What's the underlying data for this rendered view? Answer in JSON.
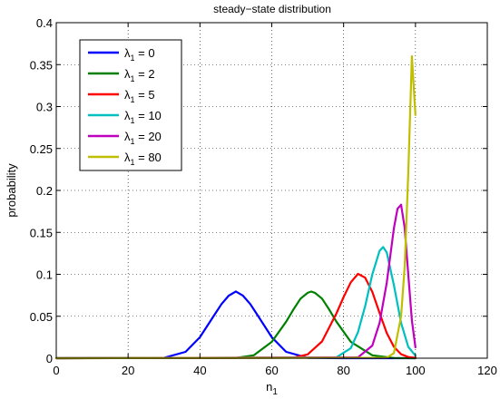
{
  "chart_data": {
    "type": "line",
    "title": "steady−state distribution",
    "xlabel": "n",
    "xlabel_sub": "1",
    "ylabel": "probability",
    "xlim": [
      0,
      120
    ],
    "ylim": [
      0,
      0.4
    ],
    "xticks": [
      0,
      20,
      40,
      60,
      80,
      100,
      120
    ],
    "xtick_labels": [
      "0",
      "20",
      "40",
      "60",
      "80",
      "100",
      "120"
    ],
    "yticks": [
      0,
      0.05,
      0.1,
      0.15,
      0.2,
      0.25,
      0.3,
      0.35,
      0.4
    ],
    "ytick_labels": [
      "0",
      "0.05",
      "0.1",
      "0.15",
      "0.2",
      "0.25",
      "0.3",
      "0.35",
      "0.4"
    ],
    "grid": true,
    "legend_position": "top-left",
    "series": [
      {
        "name": "λ1 = 0",
        "label_prefix": "λ",
        "label_sub": "1",
        "label_suffix": " = 0",
        "color": "#0000ff",
        "x": [
          0,
          30,
          36,
          40,
          44,
          46,
          48,
          50,
          52,
          54,
          56,
          60,
          64,
          70,
          80,
          100
        ],
        "y": [
          0,
          0.0004,
          0.0076,
          0.025,
          0.0515,
          0.0645,
          0.0745,
          0.0796,
          0.0745,
          0.0645,
          0.0515,
          0.025,
          0.0076,
          0.0004,
          0,
          0
        ]
      },
      {
        "name": "λ1 = 2",
        "label_prefix": "λ",
        "label_sub": "1",
        "label_suffix": " = 2",
        "color": "#008000",
        "x": [
          0,
          50,
          55,
          60,
          64,
          66,
          68,
          70,
          71,
          72,
          74,
          76,
          78,
          82,
          88,
          94,
          100
        ],
        "y": [
          0,
          0.0003,
          0.0035,
          0.0195,
          0.0435,
          0.058,
          0.071,
          0.078,
          0.0795,
          0.078,
          0.071,
          0.058,
          0.0435,
          0.0195,
          0.0035,
          0.0002,
          0
        ]
      },
      {
        "name": "λ1 = 5",
        "label_prefix": "λ",
        "label_sub": "1",
        "label_suffix": " = 5",
        "color": "#ff0000",
        "x": [
          0,
          66,
          70,
          74,
          78,
          80,
          82,
          84,
          86,
          88,
          90,
          92,
          94,
          96,
          98,
          100
        ],
        "y": [
          0,
          0.0006,
          0.0045,
          0.02,
          0.0535,
          0.073,
          0.0905,
          0.1005,
          0.096,
          0.079,
          0.054,
          0.03,
          0.0135,
          0.0048,
          0.0014,
          0.0004
        ]
      },
      {
        "name": "λ1 = 10",
        "label_prefix": "λ",
        "label_sub": "1",
        "label_suffix": " = 10",
        "color": "#00bfbf",
        "x": [
          0,
          78,
          82,
          84,
          86,
          88,
          90,
          91,
          92,
          94,
          96,
          98,
          100
        ],
        "y": [
          0,
          0.001,
          0.012,
          0.031,
          0.062,
          0.1,
          0.128,
          0.1325,
          0.126,
          0.087,
          0.042,
          0.0135,
          0.003
        ]
      },
      {
        "name": "λ1 = 20",
        "label_prefix": "λ",
        "label_sub": "1",
        "label_suffix": " = 20",
        "color": "#bf00bf",
        "x": [
          0,
          84,
          88,
          90,
          92,
          93,
          94,
          95,
          96,
          97,
          98,
          99,
          100
        ],
        "y": [
          0,
          0.001,
          0.015,
          0.042,
          0.09,
          0.122,
          0.155,
          0.178,
          0.183,
          0.155,
          0.1,
          0.045,
          0.013
        ]
      },
      {
        "name": "λ1 = 80",
        "label_prefix": "λ",
        "label_sub": "1",
        "label_suffix": " = 80",
        "color": "#bfbf00",
        "x": [
          0,
          92,
          94,
          96,
          97,
          98,
          99,
          100
        ],
        "y": [
          0,
          0.0005,
          0.006,
          0.05,
          0.11,
          0.22,
          0.36,
          0.29
        ]
      }
    ]
  }
}
